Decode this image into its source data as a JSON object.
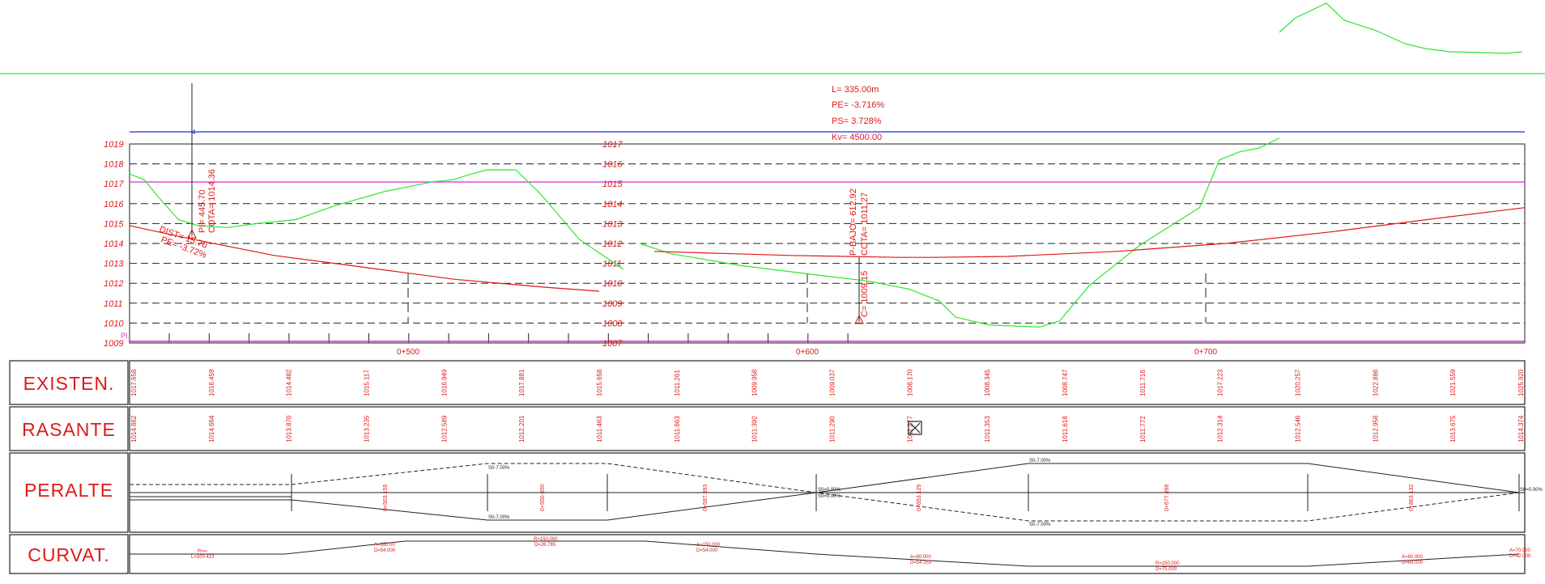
{
  "chart_data": {
    "type": "line",
    "title": "",
    "xlabel": "",
    "ylabel": "",
    "left_axis": {
      "ticks": [
        "1019",
        "1018",
        "1017",
        "1016",
        "1015",
        "1014",
        "1013",
        "1012",
        "1011",
        "1010",
        "1009"
      ]
    },
    "mid_axis": {
      "ticks": [
        "1017",
        "1016",
        "1015",
        "1014",
        "1013",
        "1012",
        "1011",
        "1010",
        "1009",
        "1008",
        "1007"
      ]
    },
    "stations": [
      "0+500",
      "0+600",
      "0+700"
    ],
    "vcurve_info": {
      "l": "L= 335.00m",
      "pe": "PE= -3.716%",
      "ps": "PS= 3.728%",
      "kv": "Kv= 4500.00"
    },
    "point_labels": {
      "start_dist": "DIST= 15.70",
      "start_pe": "PE= -3.72%",
      "vertex_pi": "PI= 445.70",
      "vertex_cota": "COTA= 1014.36",
      "low_point": "P-BAJO= 612.92",
      "low_cota": "COTA= 1011.27",
      "low_c": "C= 1009.15",
      "pi_marker": "PI"
    },
    "series": [
      {
        "name": "",
        "role": "terrain_left",
        "values": [
          [
            370,
            1017.5
          ],
          [
            385,
            1017.2
          ],
          [
            400,
            1016.3
          ],
          [
            420,
            1015.2
          ],
          [
            440,
            1014.9
          ],
          [
            470,
            1014.8
          ],
          [
            500,
            1015.0
          ],
          [
            540,
            1015.2
          ],
          [
            580,
            1015.9
          ],
          [
            630,
            1016.6
          ],
          [
            680,
            1017.1
          ],
          [
            700,
            1017.2
          ],
          [
            720,
            1017.5
          ],
          [
            735,
            1017.7
          ],
          [
            765,
            1017.7
          ],
          [
            790,
            1016.5
          ],
          [
            830,
            1014.2
          ],
          [
            875,
            1012.7
          ]
        ]
      },
      {
        "name": "",
        "role": "terrain_right",
        "values": [
          [
            510,
            1012.0
          ],
          [
            525,
            1011.5
          ],
          [
            560,
            1010.9
          ],
          [
            600,
            1010.4
          ],
          [
            625,
            1010.1
          ],
          [
            645,
            1009.7
          ],
          [
            660,
            1009.1
          ],
          [
            668,
            1008.3
          ],
          [
            685,
            1007.9
          ],
          [
            710,
            1007.8
          ],
          [
            720,
            1008.1
          ],
          [
            735,
            1009.9
          ],
          [
            760,
            1011.9
          ],
          [
            790,
            1013.8
          ],
          [
            800,
            1016.2
          ],
          [
            810,
            1016.6
          ],
          [
            820,
            1016.8
          ],
          [
            830,
            1017.3
          ]
        ]
      },
      {
        "name": "",
        "role": "grade_line",
        "values": [
          [
            370,
            1014.9
          ],
          [
            400,
            1014.3
          ],
          [
            450,
            1013.4
          ],
          [
            500,
            1012.8
          ],
          [
            550,
            1012.2
          ],
          [
            600,
            1011.8
          ],
          [
            630,
            1011.6
          ]
        ]
      },
      {
        "name": "",
        "role": "grade_curve",
        "values": [
          [
            510,
            1011.6
          ],
          [
            560,
            1011.4
          ],
          [
            600,
            1011.3
          ],
          [
            612.9,
            1011.3
          ],
          [
            640,
            1011.35
          ],
          [
            680,
            1011.6
          ],
          [
            720,
            1012.0
          ],
          [
            760,
            1012.6
          ],
          [
            800,
            1013.3
          ],
          [
            830,
            1013.8
          ]
        ]
      }
    ]
  },
  "bands": {
    "existen": {
      "label": "EXISTEN.",
      "values": [
        "1017.658",
        "1016.459",
        "1014.482",
        "1015.117",
        "1016.949",
        "1017.881",
        "1015.658",
        "1011.261",
        "1009.958",
        "1009.037",
        "1008.170",
        "1008.345",
        "1008.747",
        "1011.716",
        "1017.223",
        "1020.257",
        "1022.886",
        "1021.559",
        "1025.920"
      ]
    },
    "rasante": {
      "label": "RASANTE",
      "values": [
        "1014.862",
        "1014.664",
        "1013.870",
        "1013.235",
        "1012.589",
        "1012.201",
        "1011.463",
        "1011.663",
        "1011.392",
        "1011.290",
        "1011.277",
        "1011.353",
        "1011.618",
        "1011.772",
        "1012.314",
        "1012.546",
        "1012.958",
        "1013.675",
        "1014.374"
      ]
    },
    "peralte": {
      "label": "PERALTE",
      "s_labels": [
        "S0-7.00%",
        "S0-7.00%",
        "S0-7.00%",
        "S0-7.00%",
        "S0=0.00%",
        "S0=0.00%",
        "S0=0.00%"
      ],
      "station_labels": [
        "0+503.155",
        "0+550.000",
        "0+597.393",
        "0+653.129",
        "0+677.898",
        "0+863.132"
      ]
    },
    "curvat": {
      "label": "CURVAT.",
      "labels": [
        "R=∞",
        "L=100.423",
        "A=350.00",
        "D=54.000",
        "R=150.000",
        "D=26.785",
        "A=150.000",
        "D=54.000",
        "A=80.000",
        "D=54.353",
        "R=150.000",
        "D=75.000",
        "A=80.000",
        "D=64.000",
        "A=70.000",
        "D=42.000"
      ]
    }
  }
}
